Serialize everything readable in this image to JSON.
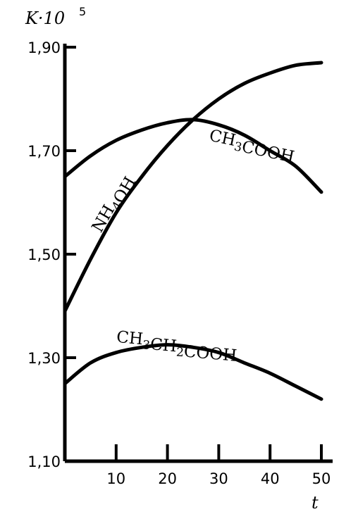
{
  "chart_data": {
    "type": "line",
    "title": "",
    "ylabel": "K·10",
    "ylabel_exponent": "5",
    "xlabel": "t",
    "xlim": [
      0,
      52
    ],
    "ylim": [
      1.1,
      1.92
    ],
    "xticks": [
      10,
      20,
      30,
      40,
      50
    ],
    "xtick_labels": [
      "10",
      "20",
      "30",
      "40",
      "50"
    ],
    "yticks": [
      1.1,
      1.3,
      1.5,
      1.7,
      1.9
    ],
    "ytick_labels": [
      "1,10",
      "1,30",
      "1,50",
      "1,70",
      "1,90"
    ],
    "grid": false,
    "series": [
      {
        "name": "NH4OH",
        "label_parts": [
          {
            "t": "NH"
          },
          {
            "t": "4",
            "sub": true
          },
          {
            "t": "OH"
          }
        ],
        "label_anchor": [
          7,
          1.54
        ],
        "label_rotate": -60,
        "x": [
          0,
          5,
          10,
          15,
          20,
          25,
          30,
          35,
          40,
          45,
          50
        ],
        "y": [
          1.39,
          1.49,
          1.58,
          1.65,
          1.71,
          1.76,
          1.8,
          1.83,
          1.85,
          1.865,
          1.87
        ]
      },
      {
        "name": "CH3COOH",
        "label_parts": [
          {
            "t": "CH"
          },
          {
            "t": "3",
            "sub": true
          },
          {
            "t": "COOH"
          }
        ],
        "label_anchor": [
          28,
          1.72
        ],
        "label_rotate": 12,
        "x": [
          0,
          5,
          10,
          15,
          20,
          25,
          30,
          35,
          40,
          45,
          50
        ],
        "y": [
          1.65,
          1.69,
          1.72,
          1.74,
          1.754,
          1.76,
          1.75,
          1.73,
          1.7,
          1.67,
          1.62
        ]
      },
      {
        "name": "CH3CH2COOH",
        "label_parts": [
          {
            "t": "CH"
          },
          {
            "t": "3",
            "sub": true
          },
          {
            "t": "CH"
          },
          {
            "t": "2",
            "sub": true
          },
          {
            "t": "COOH"
          }
        ],
        "label_anchor": [
          10,
          1.33
        ],
        "label_rotate": 5,
        "x": [
          0,
          5,
          10,
          15,
          20,
          25,
          30,
          35,
          40,
          45,
          50
        ],
        "y": [
          1.25,
          1.29,
          1.31,
          1.32,
          1.325,
          1.32,
          1.31,
          1.29,
          1.27,
          1.245,
          1.22
        ]
      }
    ]
  }
}
